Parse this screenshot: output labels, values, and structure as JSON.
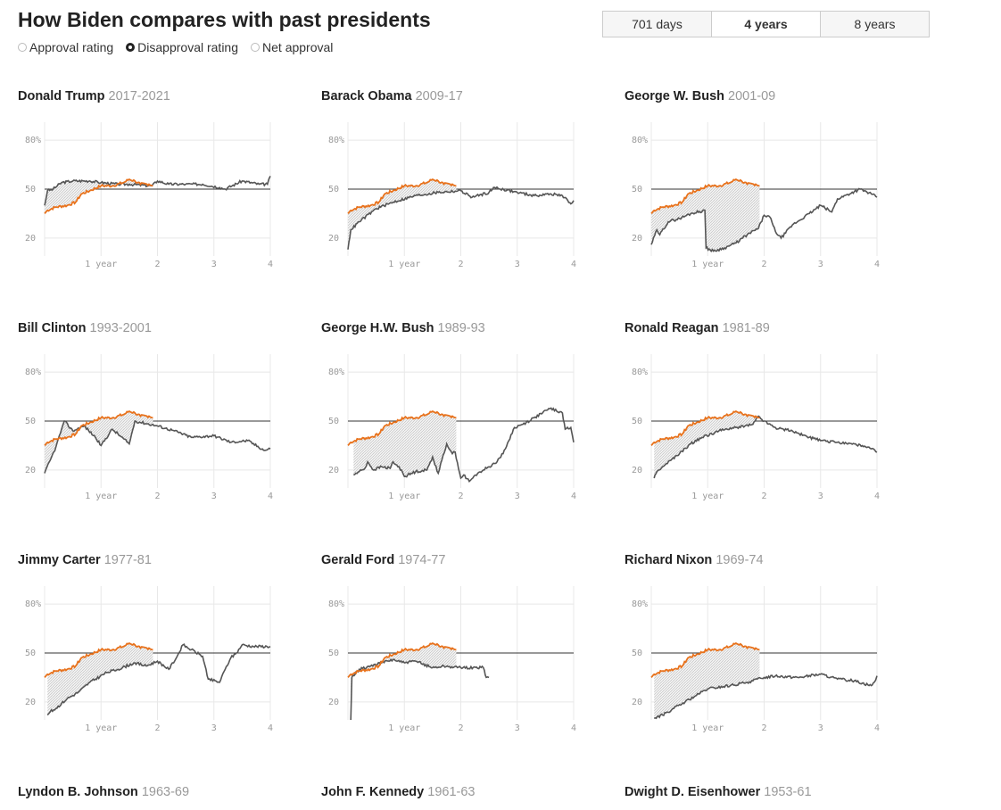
{
  "title": "How Biden compares with past presidents",
  "radios": [
    {
      "label": "Approval rating",
      "selected": false
    },
    {
      "label": "Disapproval rating",
      "selected": true
    },
    {
      "label": "Net approval",
      "selected": false
    }
  ],
  "tabs": [
    {
      "label": "701 days",
      "active": false
    },
    {
      "label": "4 years",
      "active": true
    },
    {
      "label": "8 years",
      "active": false
    }
  ],
  "colors": {
    "biden": "#e8721c",
    "president": "#555555",
    "reference": "#333333",
    "grid": "#e8e8e8"
  },
  "chart_data": {
    "type": "line",
    "metric": "disapproval rating (%)",
    "xlim": [
      0,
      4
    ],
    "ylim": [
      9,
      91
    ],
    "x_ticks": [
      {
        "v": 1,
        "label": "1 year"
      },
      {
        "v": 2,
        "label": "2"
      },
      {
        "v": 3,
        "label": "3"
      },
      {
        "v": 4,
        "label": "4"
      }
    ],
    "y_ticks": [
      {
        "v": 80,
        "label": "80%"
      },
      {
        "v": 50,
        "label": "50"
      },
      {
        "v": 20,
        "label": "20"
      }
    ],
    "reference_line": 50,
    "grid": true,
    "biden": [
      [
        0,
        35
      ],
      [
        0.05,
        37
      ],
      [
        0.2,
        39
      ],
      [
        0.4,
        40
      ],
      [
        0.55,
        42
      ],
      [
        0.65,
        47
      ],
      [
        0.8,
        49
      ],
      [
        1.0,
        52
      ],
      [
        1.2,
        52
      ],
      [
        1.4,
        54
      ],
      [
        1.5,
        56
      ],
      [
        1.6,
        55
      ],
      [
        1.7,
        53
      ],
      [
        1.85,
        53
      ],
      [
        1.92,
        52
      ]
    ],
    "presidents": [
      {
        "name": "Donald Trump",
        "years": "2017-2021",
        "values": [
          [
            0,
            40
          ],
          [
            0.05,
            49
          ],
          [
            0.15,
            50
          ],
          [
            0.3,
            54
          ],
          [
            0.5,
            55
          ],
          [
            0.8,
            55
          ],
          [
            1,
            54
          ],
          [
            1.3,
            53
          ],
          [
            1.5,
            53
          ],
          [
            1.9,
            52
          ],
          [
            2,
            55
          ],
          [
            2.2,
            53
          ],
          [
            2.5,
            53
          ],
          [
            2.8,
            53
          ],
          [
            3.1,
            51
          ],
          [
            3.2,
            50
          ],
          [
            3.5,
            55
          ],
          [
            3.8,
            53
          ],
          [
            3.95,
            53
          ],
          [
            4,
            58
          ]
        ]
      },
      {
        "name": "Barack Obama",
        "years": "2009-17",
        "values": [
          [
            0,
            13
          ],
          [
            0.05,
            25
          ],
          [
            0.2,
            30
          ],
          [
            0.5,
            38
          ],
          [
            0.8,
            42
          ],
          [
            1.2,
            46
          ],
          [
            1.6,
            48
          ],
          [
            2.0,
            49
          ],
          [
            2.2,
            45
          ],
          [
            2.5,
            48
          ],
          [
            2.6,
            51
          ],
          [
            3.0,
            48
          ],
          [
            3.3,
            46
          ],
          [
            3.6,
            47
          ],
          [
            3.8,
            46
          ],
          [
            3.95,
            41
          ],
          [
            4,
            43
          ]
        ]
      },
      {
        "name": "George W. Bush",
        "years": "2001-09",
        "values": [
          [
            0,
            16
          ],
          [
            0.1,
            25
          ],
          [
            0.15,
            22
          ],
          [
            0.3,
            30
          ],
          [
            0.5,
            32
          ],
          [
            0.7,
            35
          ],
          [
            0.95,
            37
          ],
          [
            0.97,
            14
          ],
          [
            1.1,
            12
          ],
          [
            1.3,
            14
          ],
          [
            1.5,
            17
          ],
          [
            1.7,
            22
          ],
          [
            1.9,
            26
          ],
          [
            2.0,
            34
          ],
          [
            2.1,
            33
          ],
          [
            2.2,
            24
          ],
          [
            2.3,
            20
          ],
          [
            2.5,
            28
          ],
          [
            2.8,
            35
          ],
          [
            3.0,
            40
          ],
          [
            3.2,
            36
          ],
          [
            3.3,
            44
          ],
          [
            3.7,
            50
          ],
          [
            3.9,
            47
          ],
          [
            4,
            45
          ]
        ]
      },
      {
        "name": "Bill Clinton",
        "years": "1993-2001",
        "values": [
          [
            0,
            18
          ],
          [
            0.1,
            26
          ],
          [
            0.2,
            34
          ],
          [
            0.3,
            45
          ],
          [
            0.35,
            50
          ],
          [
            0.5,
            44
          ],
          [
            0.7,
            47
          ],
          [
            0.9,
            40
          ],
          [
            1.0,
            35
          ],
          [
            1.2,
            45
          ],
          [
            1.5,
            36
          ],
          [
            1.6,
            50
          ],
          [
            2.0,
            47
          ],
          [
            2.3,
            44
          ],
          [
            2.6,
            40
          ],
          [
            3.0,
            41
          ],
          [
            3.3,
            37
          ],
          [
            3.6,
            38
          ],
          [
            3.9,
            32
          ],
          [
            4,
            33
          ]
        ]
      },
      {
        "name": "George H.W. Bush",
        "years": "1989-93",
        "values": [
          [
            0.1,
            17
          ],
          [
            0.2,
            19
          ],
          [
            0.3,
            21
          ],
          [
            0.35,
            25
          ],
          [
            0.45,
            20
          ],
          [
            0.6,
            22
          ],
          [
            0.75,
            21
          ],
          [
            0.8,
            25
          ],
          [
            0.95,
            20
          ],
          [
            1.0,
            16
          ],
          [
            1.2,
            19
          ],
          [
            1.4,
            20
          ],
          [
            1.5,
            28
          ],
          [
            1.6,
            18
          ],
          [
            1.75,
            36
          ],
          [
            1.85,
            30
          ],
          [
            1.9,
            31
          ],
          [
            2.0,
            15
          ],
          [
            2.05,
            17
          ],
          [
            2.15,
            13
          ],
          [
            2.3,
            18
          ],
          [
            2.4,
            20
          ],
          [
            2.5,
            22
          ],
          [
            2.6,
            24
          ],
          [
            2.75,
            30
          ],
          [
            2.85,
            38
          ],
          [
            2.95,
            46
          ],
          [
            3.1,
            48
          ],
          [
            3.3,
            52
          ],
          [
            3.45,
            55
          ],
          [
            3.6,
            58
          ],
          [
            3.7,
            56
          ],
          [
            3.8,
            55
          ],
          [
            3.85,
            45
          ],
          [
            3.95,
            46
          ],
          [
            4,
            37
          ]
        ]
      },
      {
        "name": "Ronald Reagan",
        "years": "1981-89",
        "values": [
          [
            0.05,
            15
          ],
          [
            0.1,
            19
          ],
          [
            0.2,
            22
          ],
          [
            0.35,
            26
          ],
          [
            0.5,
            30
          ],
          [
            0.7,
            36
          ],
          [
            0.9,
            40
          ],
          [
            1.2,
            44
          ],
          [
            1.5,
            46
          ],
          [
            1.8,
            48
          ],
          [
            1.9,
            53
          ],
          [
            2.0,
            50
          ],
          [
            2.2,
            46
          ],
          [
            2.5,
            44
          ],
          [
            2.8,
            40
          ],
          [
            3.0,
            38
          ],
          [
            3.3,
            37
          ],
          [
            3.6,
            36
          ],
          [
            3.9,
            33
          ],
          [
            4,
            31
          ]
        ]
      },
      {
        "name": "Jimmy Carter",
        "years": "1977-81",
        "values": [
          [
            0.05,
            12
          ],
          [
            0.1,
            14
          ],
          [
            0.2,
            16
          ],
          [
            0.4,
            22
          ],
          [
            0.6,
            26
          ],
          [
            0.8,
            32
          ],
          [
            1.1,
            38
          ],
          [
            1.3,
            40
          ],
          [
            1.6,
            44
          ],
          [
            1.8,
            42
          ],
          [
            2.0,
            45
          ],
          [
            2.2,
            40
          ],
          [
            2.35,
            48
          ],
          [
            2.45,
            55
          ],
          [
            2.6,
            52
          ],
          [
            2.8,
            48
          ],
          [
            2.9,
            34
          ],
          [
            3.1,
            32
          ],
          [
            3.2,
            40
          ],
          [
            3.3,
            47
          ],
          [
            3.4,
            50
          ],
          [
            3.5,
            55
          ],
          [
            3.7,
            54
          ],
          [
            4,
            54
          ]
        ]
      },
      {
        "name": "Gerald Ford",
        "years": "1974-77",
        "values": [
          [
            0.05,
            9
          ],
          [
            0.07,
            35
          ],
          [
            0.2,
            40
          ],
          [
            0.4,
            42
          ],
          [
            0.6,
            44
          ],
          [
            0.8,
            46
          ],
          [
            1.0,
            44
          ],
          [
            1.2,
            45
          ],
          [
            1.5,
            41
          ],
          [
            1.7,
            42
          ],
          [
            2.0,
            41
          ],
          [
            2.4,
            41
          ],
          [
            2.45,
            35
          ],
          [
            2.5,
            35
          ]
        ]
      },
      {
        "name": "Richard Nixon",
        "years": "1969-74",
        "values": [
          [
            0.05,
            10
          ],
          [
            0.2,
            12
          ],
          [
            0.4,
            16
          ],
          [
            0.6,
            20
          ],
          [
            0.8,
            24
          ],
          [
            1.0,
            28
          ],
          [
            1.4,
            30
          ],
          [
            1.7,
            32
          ],
          [
            2.0,
            35
          ],
          [
            2.2,
            36
          ],
          [
            2.6,
            35
          ],
          [
            3.0,
            37
          ],
          [
            3.3,
            34
          ],
          [
            3.6,
            33
          ],
          [
            3.9,
            30
          ],
          [
            3.95,
            32
          ],
          [
            4,
            36
          ]
        ]
      },
      {
        "name": "Lyndon B. Johnson",
        "years": "1963-69",
        "values": []
      },
      {
        "name": "John F. Kennedy",
        "years": "1961-63",
        "values": []
      },
      {
        "name": "Dwight D. Eisenhower",
        "years": "1953-61",
        "values": []
      }
    ]
  }
}
